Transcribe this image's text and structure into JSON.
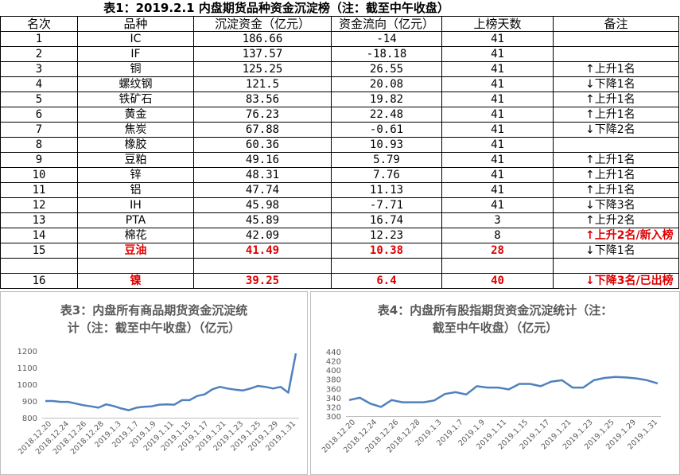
{
  "title": "表1：2019.2.1 内盘期货品种资金沉淀榜（注：截至中午收盘）",
  "headers": [
    "名次",
    "品种",
    "沉淀资金（亿元）",
    "资金流向（亿元）",
    "上榜天数",
    "备注"
  ],
  "rows": [
    {
      "rank": "1",
      "name": "IC",
      "fund": "186.66",
      "flow": "-14",
      "days": "41",
      "note": "",
      "highlight": false
    },
    {
      "rank": "2",
      "name": "IF",
      "fund": "137.57",
      "flow": "-18.18",
      "days": "41",
      "note": "",
      "highlight": false
    },
    {
      "rank": "3",
      "name": "铜",
      "fund": "125.25",
      "flow": "26.55",
      "days": "41",
      "note": "上升1名",
      "dir": "up",
      "highlight": false
    },
    {
      "rank": "4",
      "name": "螺纹钢",
      "fund": "121.5",
      "flow": "20.08",
      "days": "41",
      "note": "下降1名",
      "dir": "down",
      "highlight": false
    },
    {
      "rank": "5",
      "name": "铁矿石",
      "fund": "83.56",
      "flow": "19.82",
      "days": "41",
      "note": "上升1名",
      "dir": "up",
      "highlight": false
    },
    {
      "rank": "6",
      "name": "黄金",
      "fund": "76.23",
      "flow": "22.48",
      "days": "41",
      "note": "上升1名",
      "dir": "up",
      "highlight": false
    },
    {
      "rank": "7",
      "name": "焦炭",
      "fund": "67.88",
      "flow": "-0.61",
      "days": "41",
      "note": "下降2名",
      "dir": "down",
      "highlight": false
    },
    {
      "rank": "8",
      "name": "橡胶",
      "fund": "60.36",
      "flow": "10.93",
      "days": "41",
      "note": "",
      "highlight": false
    },
    {
      "rank": "9",
      "name": "豆粕",
      "fund": "49.16",
      "flow": "5.79",
      "days": "41",
      "note": "上升1名",
      "dir": "up",
      "highlight": false
    },
    {
      "rank": "10",
      "name": "锌",
      "fund": "48.31",
      "flow": "7.76",
      "days": "41",
      "note": "上升1名",
      "dir": "up",
      "highlight": false
    },
    {
      "rank": "11",
      "name": "铝",
      "fund": "47.74",
      "flow": "11.13",
      "days": "41",
      "note": "上升1名",
      "dir": "up",
      "highlight": false
    },
    {
      "rank": "12",
      "name": "IH",
      "fund": "45.98",
      "flow": "-7.71",
      "days": "41",
      "note": "下降3名",
      "dir": "down",
      "highlight": false
    },
    {
      "rank": "13",
      "name": "PTA",
      "fund": "45.89",
      "flow": "16.74",
      "days": "3",
      "note": "上升2名",
      "dir": "up",
      "highlight": false
    },
    {
      "rank": "14",
      "name": "棉花",
      "fund": "42.09",
      "flow": "12.23",
      "days": "8",
      "note": "上升2名/新入榜",
      "dir": "up",
      "highlight": false,
      "noteRed": true
    },
    {
      "rank": "15",
      "name": "豆油",
      "fund": "41.49",
      "flow": "10.38",
      "days": "28",
      "note": "下降1名",
      "dir": "down",
      "highlight": true
    },
    {
      "blank": true
    },
    {
      "rank": "16",
      "name": "镍",
      "fund": "39.25",
      "flow": "6.4",
      "days": "40",
      "note": "下降3名/已出榜",
      "dir": "down",
      "highlight": true,
      "noteRed": true
    }
  ],
  "chart3": {
    "title_line1": "表3：内盘所有商品期货资金沉淀统",
    "title_line2": "计（注：截至中午收盘）（亿元）",
    "chart_data": {
      "type": "line",
      "ylim": [
        800,
        1200
      ],
      "yticks": [
        "1200",
        "1100",
        "1000",
        "900",
        "800"
      ],
      "xticks": [
        "2018.12.20",
        "2018.12.24",
        "2018.12.26",
        "2018.12.28",
        "2019.1.3",
        "2019.1.7",
        "2019.1.9",
        "2019.1.11",
        "2019.1.15",
        "2019.1.17",
        "2019.1.21",
        "2019.1.23",
        "2019.1.25",
        "2019.1.29",
        "2019.1.31"
      ],
      "values": [
        900,
        900,
        895,
        895,
        885,
        875,
        868,
        860,
        880,
        870,
        855,
        845,
        860,
        865,
        868,
        878,
        880,
        878,
        905,
        905,
        930,
        940,
        970,
        985,
        975,
        968,
        963,
        975,
        990,
        985,
        975,
        985,
        950,
        1185
      ],
      "color": "#4f81bd"
    }
  },
  "chart4": {
    "title_line1": "表4：内盘所有股指期货资金沉淀统计（注：",
    "title_line2": "截至中午收盘）（亿元）",
    "chart_data": {
      "type": "line",
      "ylim": [
        300,
        440
      ],
      "yticks": [
        "440",
        "420",
        "400",
        "380",
        "360",
        "340",
        "320",
        "300"
      ],
      "xticks": [
        "2018.12.20",
        "2018.12.24",
        "2018.12.26",
        "2018.12.28",
        "2019.1.3",
        "2019.1.7",
        "2019.1.9",
        "2019.1.11",
        "2019.1.15",
        "2019.1.17",
        "2019.1.21",
        "2019.1.23",
        "2019.1.25",
        "2019.1.29",
        "2019.1.31"
      ],
      "values": [
        335,
        340,
        327,
        320,
        335,
        330,
        330,
        330,
        334,
        348,
        352,
        347,
        365,
        362,
        362,
        358,
        370,
        370,
        365,
        375,
        378,
        362,
        362,
        378,
        383,
        385,
        384,
        382,
        378,
        371
      ],
      "color": "#4f81bd"
    }
  },
  "colors": {
    "line": "#4f81bd",
    "red": "#e00000",
    "axis": "#595959",
    "grid": "#d9d9d9"
  }
}
